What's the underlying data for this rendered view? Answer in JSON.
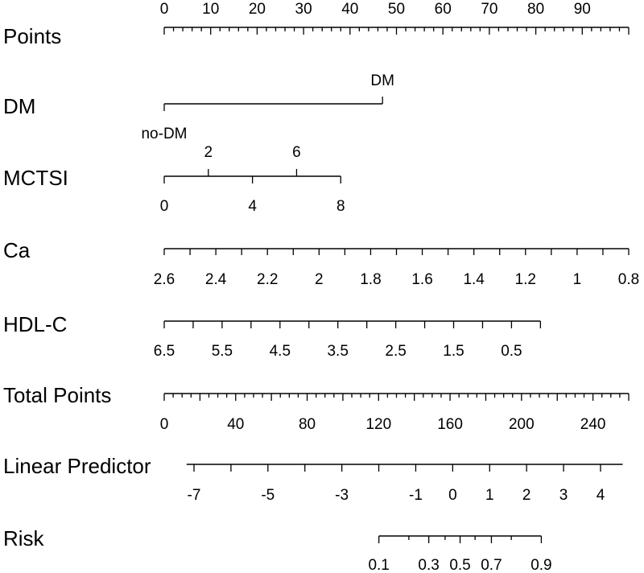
{
  "chart_data": {
    "type": "nomogram",
    "rows": [
      {
        "key": "points",
        "label": "Points",
        "ticks": [
          "0",
          "10",
          "20",
          "30",
          "40",
          "50",
          "60",
          "70",
          "80",
          "90"
        ],
        "range": [
          0,
          100
        ],
        "major_ticks": [
          0,
          10,
          20,
          30,
          40,
          50,
          60,
          70,
          80,
          90,
          100
        ],
        "minor_step": 2
      },
      {
        "key": "dm",
        "label": "DM",
        "levels": [
          {
            "name": "no-DM",
            "points": 0
          },
          {
            "name": "DM",
            "points": 47
          }
        ]
      },
      {
        "key": "mctsi",
        "label": "MCTSI",
        "range": [
          0,
          8
        ],
        "points_range": [
          0,
          38
        ],
        "ticks_above": [
          "2",
          "6"
        ],
        "ticks_below": [
          "0",
          "4",
          "8"
        ]
      },
      {
        "key": "ca",
        "label": "Ca",
        "range": [
          2.6,
          0.8
        ],
        "points_range": [
          0,
          100
        ],
        "ticks": [
          "2.6",
          "2.4",
          "2.2",
          "2",
          "1.8",
          "1.6",
          "1.4",
          "1.2",
          "1",
          "0.8"
        ],
        "minor_step": 0.1
      },
      {
        "key": "hdl",
        "label": "HDL-C",
        "range": [
          6.5,
          0
        ],
        "points_range": [
          0,
          81
        ],
        "ticks": [
          "6.5",
          "5.5",
          "4.5",
          "3.5",
          "2.5",
          "1.5",
          "0.5"
        ],
        "minor_step": 0.5
      },
      {
        "key": "total",
        "label": "Total Points",
        "range": [
          0,
          260
        ],
        "ticks": [
          "0",
          "40",
          "80",
          "120",
          "160",
          "200",
          "240"
        ],
        "minor_step": 5
      },
      {
        "key": "lp",
        "label": "Linear Predictor",
        "range": [
          -7.2,
          4.6
        ],
        "axis_range": [
          -8,
          4
        ],
        "ticks": [
          "-7",
          "-5",
          "-3",
          "-1",
          "0",
          "1",
          "2",
          "3",
          "4"
        ],
        "minor_step": 1
      },
      {
        "key": "risk",
        "label": "Risk",
        "ticks": [
          "0.1",
          "0.3",
          "0.5",
          "0.7",
          "0.9"
        ],
        "minor_ticks": [
          0.2,
          0.4,
          0.6,
          0.8
        ]
      }
    ]
  }
}
